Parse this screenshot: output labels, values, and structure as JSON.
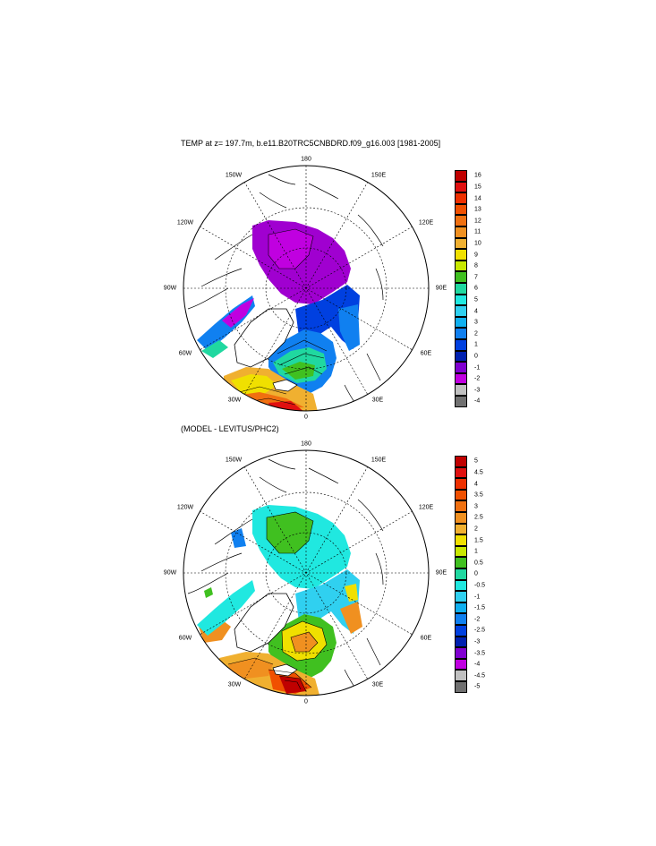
{
  "panel_top": {
    "title": "TEMP at z= 197.7m, b.e11.B20TRC5CNBDRD.f09_g16.003 [1981-2005]",
    "lon_labels": {
      "top": "180",
      "bottom": "0",
      "left": "90W",
      "right": "90E",
      "ul": "150W",
      "ur": "150E",
      "ml_up": "120W",
      "mr_up": "120E",
      "ml_low": "60W",
      "mr_low": "60E",
      "ll": "30W",
      "lr": "30E"
    },
    "colorbar": {
      "labels": [
        "16",
        "15",
        "14",
        "13",
        "12",
        "11",
        "10",
        "9",
        "8",
        "7",
        "6",
        "5",
        "4",
        "3",
        "2",
        "1",
        "0",
        "-1",
        "-2",
        "-3",
        "-4"
      ],
      "colors": [
        "#c00000",
        "#e01010",
        "#ee3000",
        "#f05000",
        "#f07010",
        "#f09020",
        "#f0b030",
        "#f0e000",
        "#c8e800",
        "#40c020",
        "#20d8a0",
        "#20e8e0",
        "#30d0f0",
        "#10b0f0",
        "#1080f0",
        "#0040e0",
        "#0020b0",
        "#8000d0",
        "#c000e0",
        "#c0c0c0",
        "#707070"
      ]
    }
  },
  "panel_bottom": {
    "title": "(MODEL - LEVITUS/PHC2)",
    "lon_labels": {
      "top": "180",
      "bottom": "0",
      "left": "90W",
      "right": "90E",
      "ul": "150W",
      "ur": "150E",
      "ml_up": "120W",
      "mr_up": "120E",
      "ml_low": "60W",
      "mr_low": "60E",
      "ll": "30W",
      "lr": "30E"
    },
    "colorbar": {
      "labels": [
        "5",
        "4.5",
        "4",
        "3.5",
        "3",
        "2.5",
        "2",
        "1.5",
        "1",
        "0.5",
        "0",
        "-0.5",
        "-1",
        "-1.5",
        "-2",
        "-2.5",
        "-3",
        "-3.5",
        "-4",
        "-4.5",
        "-5"
      ],
      "colors": [
        "#c00000",
        "#e01010",
        "#ee3000",
        "#f05000",
        "#f07010",
        "#f09020",
        "#f0b030",
        "#f0e000",
        "#c8e800",
        "#40c020",
        "#20d8a0",
        "#20e8e0",
        "#30d0f0",
        "#10b0f0",
        "#1080f0",
        "#0040e0",
        "#0020b0",
        "#8000d0",
        "#c000e0",
        "#c0c0c0",
        "#707070"
      ]
    }
  }
}
